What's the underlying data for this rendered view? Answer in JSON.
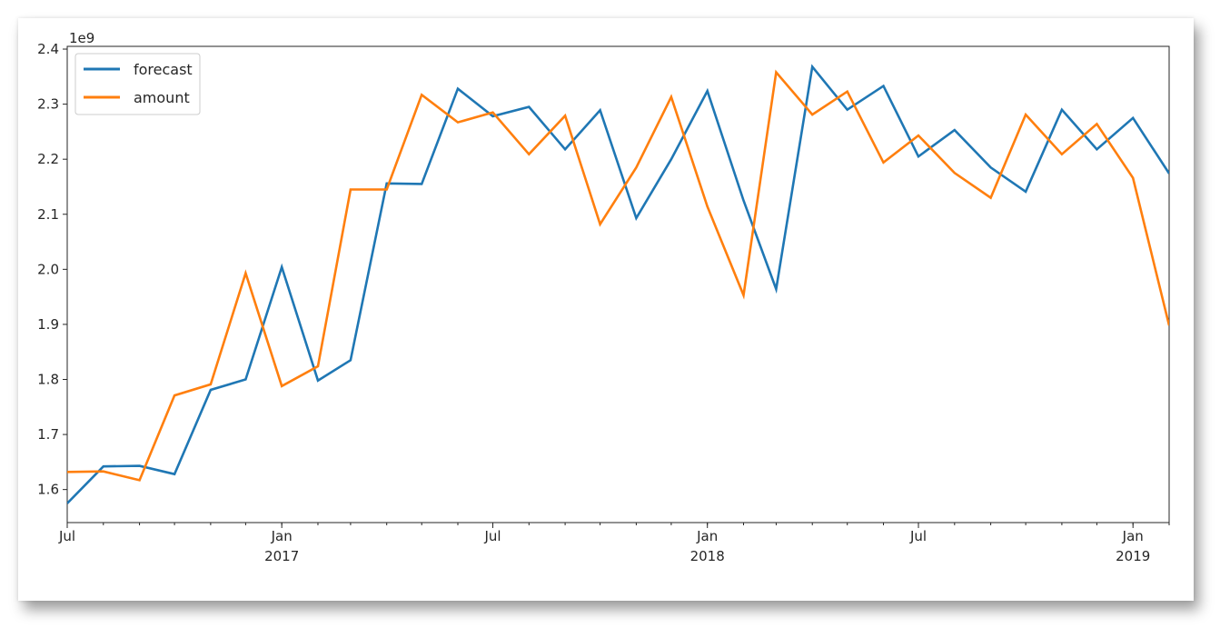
{
  "chart_data": {
    "type": "line",
    "title": "",
    "xlabel": "",
    "ylabel": "",
    "y_offset_label": "1e9",
    "y_scale_factor": 1000000000,
    "ylim": [
      1.54,
      2.405
    ],
    "xlim": [
      "2016-07-01",
      "2019-02-01"
    ],
    "yticks": [
      1.6,
      1.7,
      1.8,
      1.9,
      2.0,
      2.1,
      2.2,
      2.3,
      2.4
    ],
    "ytick_labels": [
      "1.6",
      "1.7",
      "1.8",
      "1.9",
      "2.0",
      "2.1",
      "2.2",
      "2.3",
      "2.4"
    ],
    "xticks_major": [
      {
        "date": "2016-07-01",
        "label": "Jul",
        "year": ""
      },
      {
        "date": "2017-01-01",
        "label": "Jan",
        "year": "2017"
      },
      {
        "date": "2017-07-01",
        "label": "Jul",
        "year": ""
      },
      {
        "date": "2018-01-01",
        "label": "Jan",
        "year": "2018"
      },
      {
        "date": "2018-07-01",
        "label": "Jul",
        "year": ""
      },
      {
        "date": "2019-01-01",
        "label": "Jan",
        "year": "2019"
      }
    ],
    "x": [
      "2016-07",
      "2016-08",
      "2016-09",
      "2016-10",
      "2016-11",
      "2016-12",
      "2017-01",
      "2017-02",
      "2017-03",
      "2017-04",
      "2017-05",
      "2017-06",
      "2017-07",
      "2017-08",
      "2017-09",
      "2017-10",
      "2017-11",
      "2017-12",
      "2018-01",
      "2018-02",
      "2018-03",
      "2018-04",
      "2018-05",
      "2018-06",
      "2018-07",
      "2018-08",
      "2018-09",
      "2018-10",
      "2018-11",
      "2018-12",
      "2019-01",
      "2019-02"
    ],
    "series": [
      {
        "name": "forecast",
        "color": "#1f77b4",
        "values": [
          1.575,
          1.642,
          1.643,
          1.628,
          1.781,
          1.8,
          2.004,
          1.798,
          1.835,
          2.156,
          2.155,
          2.328,
          2.278,
          2.295,
          2.218,
          2.289,
          2.093,
          2.2,
          2.324,
          2.125,
          1.964,
          2.368,
          2.29,
          2.333,
          2.205,
          2.253,
          2.185,
          2.141,
          2.29,
          2.218,
          2.275,
          2.174
        ]
      },
      {
        "name": "amount",
        "color": "#ff7f0e",
        "values": [
          1.632,
          1.633,
          1.617,
          1.771,
          1.791,
          1.993,
          1.788,
          1.824,
          2.145,
          2.145,
          2.317,
          2.267,
          2.285,
          2.209,
          2.279,
          2.082,
          2.185,
          2.313,
          2.114,
          1.953,
          2.358,
          2.281,
          2.323,
          2.194,
          2.243,
          2.175,
          2.13,
          2.281,
          2.209,
          2.264,
          2.166,
          1.898
        ]
      }
    ],
    "legend_position": "upper-left",
    "grid": false
  }
}
